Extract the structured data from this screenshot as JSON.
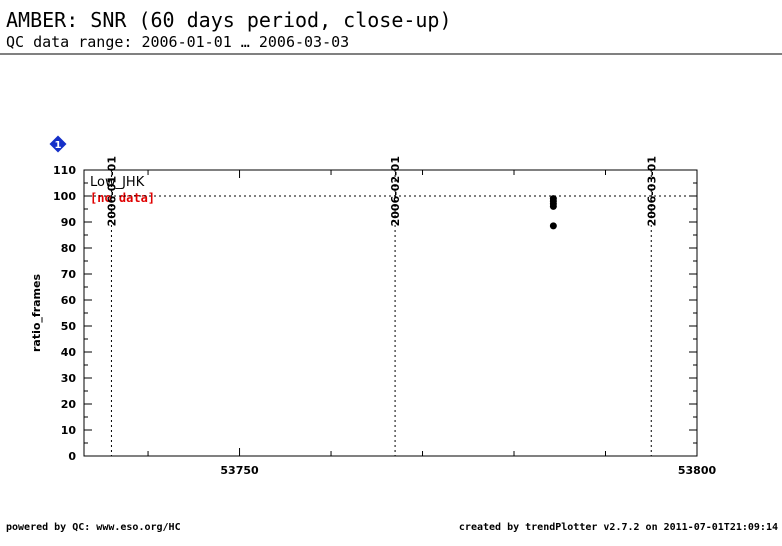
{
  "chart_data": {
    "type": "scatter",
    "title": "AMBER: SNR (60 days period, close-up)",
    "subtitle": "QC data range: 2006-01-01 … 2006-03-03",
    "y_label": "ratio_frames",
    "legend_label": "Low_JHK",
    "legend_note": "[no data]",
    "badge": "1",
    "footer_left": "powered by QC: www.eso.org/HC",
    "footer_right": "created by trendPlotter v2.7.2 on 2011-07-01T21:09:14",
    "series": [
      {
        "name": "Low_JHK",
        "color": "#000000",
        "x": [
          53784.3,
          53784.3,
          53784.3,
          53784.3,
          53784.3
        ],
        "values": [
          99,
          98,
          97,
          96,
          88.5
        ]
      }
    ],
    "xlim": [
      53733,
      53800
    ],
    "xticks": [
      53750,
      53800
    ],
    "xminorticks": [
      53740,
      53760,
      53770,
      53780,
      53790
    ],
    "ylim": [
      0,
      110
    ],
    "yticks": [
      0,
      10,
      20,
      30,
      40,
      50,
      60,
      70,
      80,
      90,
      100,
      110
    ],
    "yminorticks": [
      5,
      15,
      25,
      35,
      45,
      55,
      65,
      75,
      85,
      95,
      105
    ],
    "reference_line": 100,
    "date_markers": [
      {
        "x": 53736,
        "label": "2006-01-01"
      },
      {
        "x": 53767,
        "label": "2006-02-01"
      },
      {
        "x": 53795,
        "label": "2006-03-01"
      }
    ]
  }
}
